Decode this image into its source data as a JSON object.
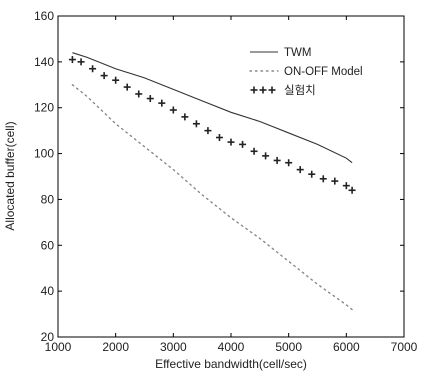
{
  "chart_data": {
    "type": "line",
    "title": "",
    "xlabel": "Effective bandwidth(cell/sec)",
    "ylabel": "Allocated buffer(cell)",
    "xlim": [
      1000,
      7000
    ],
    "ylim": [
      20,
      160
    ],
    "xticks": [
      1000,
      2000,
      3000,
      4000,
      5000,
      6000,
      7000
    ],
    "yticks": [
      20,
      40,
      60,
      80,
      100,
      120,
      140,
      160
    ],
    "grid": false,
    "legend_position": "top-right",
    "series": [
      {
        "name": "TWM",
        "style": "solid",
        "color": "#333333",
        "x": [
          1250,
          1500,
          2000,
          2500,
          3000,
          3500,
          4000,
          4500,
          5000,
          5500,
          6000,
          6100
        ],
        "y": [
          144,
          142,
          137,
          133,
          128,
          123,
          118,
          114,
          109,
          104,
          98,
          96
        ]
      },
      {
        "name": "ON-OFF Model",
        "style": "dotted",
        "color": "#888888",
        "x": [
          1250,
          1500,
          2000,
          2500,
          3000,
          3500,
          4000,
          4500,
          5000,
          5500,
          6000,
          6100
        ],
        "y": [
          130,
          125,
          113,
          103,
          93,
          82,
          72,
          63,
          53,
          43,
          34,
          32
        ]
      },
      {
        "name": "실험치",
        "style": "marker",
        "color": "#222222",
        "x": [
          1250,
          1400,
          1600,
          1800,
          2000,
          2200,
          2400,
          2600,
          2800,
          3000,
          3200,
          3400,
          3600,
          3800,
          4000,
          4200,
          4400,
          4600,
          4800,
          5000,
          5200,
          5400,
          5600,
          5800,
          6000,
          6100
        ],
        "y": [
          141,
          140,
          137,
          134,
          132,
          129,
          126,
          124,
          122,
          119,
          116,
          113,
          110,
          107,
          105,
          104,
          101,
          99,
          97,
          96,
          93,
          91,
          89,
          88,
          86,
          84
        ]
      }
    ]
  }
}
